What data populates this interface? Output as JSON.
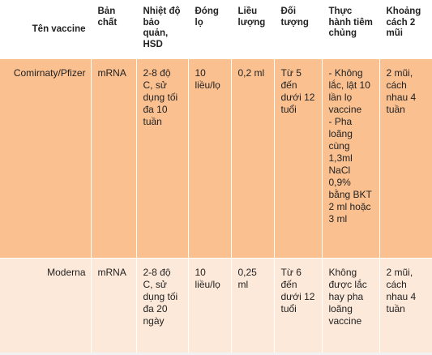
{
  "table": {
    "headers": [
      "Tên vaccine",
      "Bản chất",
      "Nhiệt độ bảo quản, HSD",
      "Đóng lọ",
      "Liều lượng",
      "Đối tượng",
      "Thực hành tiêm chủng",
      "Khoảng cách 2 mũi"
    ],
    "rows": [
      {
        "cells": [
          "Comirnaty/Pfizer",
          "mRNA",
          "2-8 độ C, sử dụng tối đa 10 tuần",
          "10 liều/lọ",
          "0,2 ml",
          "Từ 5 đến dưới 12 tuổi",
          "- Không lắc, lật 10 lần lọ vaccine\n- Pha loãng cùng 1,3ml NaCl 0,9% bằng BKT 2 ml hoặc 3 ml",
          "2 mũi, cách nhau 4 tuần"
        ]
      },
      {
        "cells": [
          "Moderna",
          "mRNA",
          "2-8 độ C, sử dụng tối đa 20 ngày",
          "10 liều/lọ",
          "0,25 ml",
          "Từ 6 đến dưới 12 tuổi",
          "Không được lắc hay pha loãng vaccine",
          "2 mũi, cách nhau 4 tuần"
        ]
      }
    ]
  }
}
